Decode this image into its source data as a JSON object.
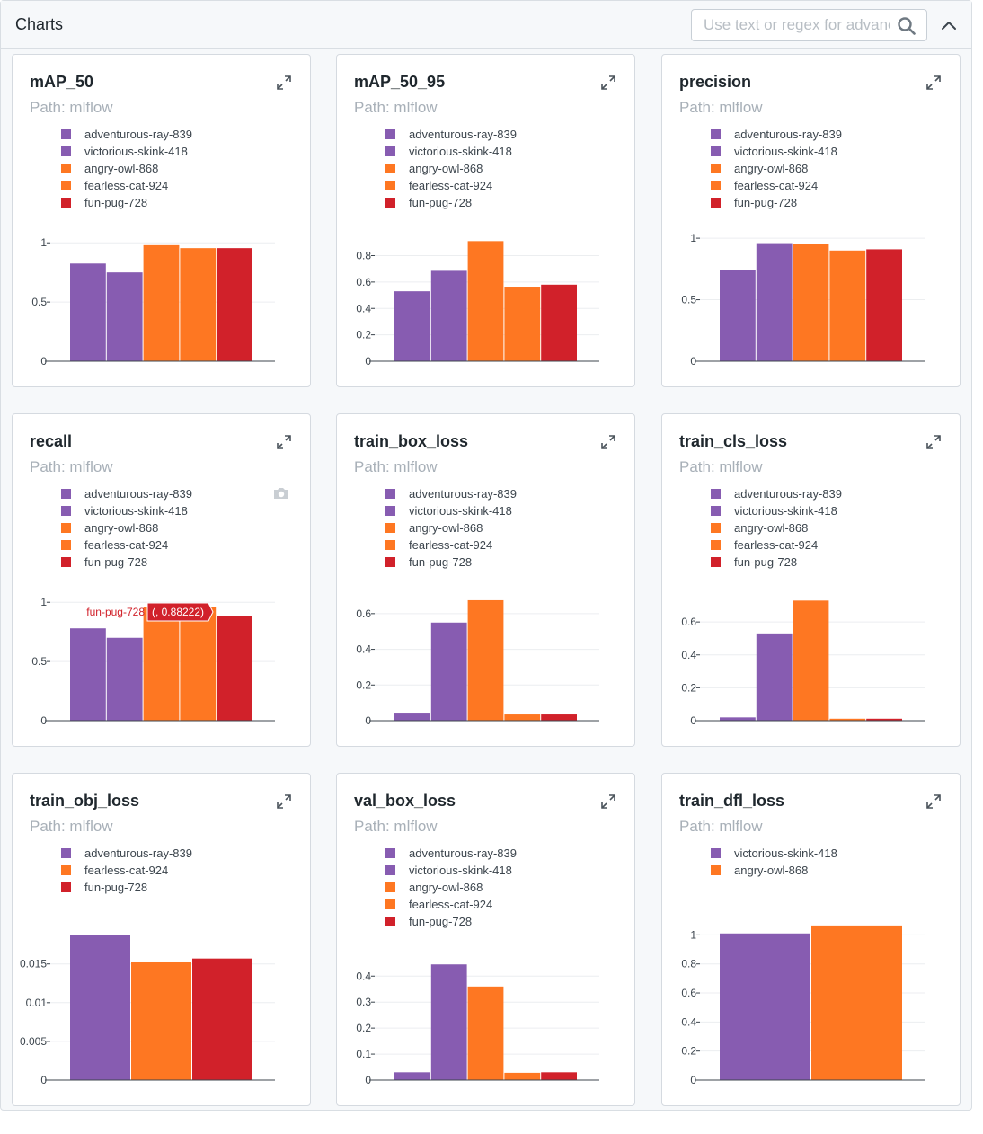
{
  "header": {
    "title": "Charts",
    "search_placeholder": "Use text or regex for advanced search"
  },
  "colors": {
    "adventurous-ray-839": "#875cb1",
    "victorious-skink-418": "#875cb1",
    "angry-owl-868": "#fe7722",
    "fearless-cat-924": "#fe7722",
    "fun-pug-728": "#d1212a"
  },
  "tooltip": {
    "chart": 3,
    "series": "fun-pug-728",
    "value": "(, 0.88222)"
  },
  "chart_data": [
    {
      "type": "bar",
      "title": "mAP_50",
      "path": "Path: mlflow",
      "series": [
        {
          "name": "adventurous-ray-839",
          "value": 0.825
        },
        {
          "name": "victorious-skink-418",
          "value": 0.75
        },
        {
          "name": "angry-owl-868",
          "value": 0.98
        },
        {
          "name": "fearless-cat-924",
          "value": 0.955
        },
        {
          "name": "fun-pug-728",
          "value": 0.955
        }
      ],
      "ylim": [
        0,
        1.07
      ],
      "yticks": [
        0,
        0.5,
        1
      ],
      "ytick_labels": [
        "0",
        "0.5",
        "1"
      ]
    },
    {
      "type": "bar",
      "title": "mAP_50_95",
      "path": "Path: mlflow",
      "series": [
        {
          "name": "adventurous-ray-839",
          "value": 0.53
        },
        {
          "name": "victorious-skink-418",
          "value": 0.685
        },
        {
          "name": "angry-owl-868",
          "value": 0.91
        },
        {
          "name": "fearless-cat-924",
          "value": 0.565
        },
        {
          "name": "fun-pug-728",
          "value": 0.58
        }
      ],
      "ylim": [
        0,
        0.96
      ],
      "yticks": [
        0,
        0.2,
        0.4,
        0.6,
        0.8
      ],
      "ytick_labels": [
        "0",
        "0.2",
        "0.4",
        "0.6",
        "0.8"
      ]
    },
    {
      "type": "bar",
      "title": "precision",
      "path": "Path: mlflow",
      "series": [
        {
          "name": "adventurous-ray-839",
          "value": 0.745
        },
        {
          "name": "victorious-skink-418",
          "value": 0.96
        },
        {
          "name": "angry-owl-868",
          "value": 0.95
        },
        {
          "name": "fearless-cat-924",
          "value": 0.9
        },
        {
          "name": "fun-pug-728",
          "value": 0.91
        }
      ],
      "ylim": [
        0,
        1.03
      ],
      "yticks": [
        0,
        0.5,
        1
      ],
      "ytick_labels": [
        "0",
        "0.5",
        "1"
      ]
    },
    {
      "type": "bar",
      "title": "recall",
      "path": "Path: mlflow",
      "series": [
        {
          "name": "adventurous-ray-839",
          "value": 0.78
        },
        {
          "name": "victorious-skink-418",
          "value": 0.7
        },
        {
          "name": "angry-owl-868",
          "value": 0.96
        },
        {
          "name": "fearless-cat-924",
          "value": 0.96
        },
        {
          "name": "fun-pug-728",
          "value": 0.88222
        }
      ],
      "ylim": [
        0,
        1.07
      ],
      "yticks": [
        0,
        0.5,
        1
      ],
      "ytick_labels": [
        "0",
        "0.5",
        "1"
      ]
    },
    {
      "type": "bar",
      "title": "train_box_loss",
      "path": "Path: mlflow",
      "series": [
        {
          "name": "adventurous-ray-839",
          "value": 0.04
        },
        {
          "name": "victorious-skink-418",
          "value": 0.55
        },
        {
          "name": "angry-owl-868",
          "value": 0.675
        },
        {
          "name": "fearless-cat-924",
          "value": 0.035
        },
        {
          "name": "fun-pug-728",
          "value": 0.035
        }
      ],
      "ylim": [
        0,
        0.71
      ],
      "yticks": [
        0,
        0.2,
        0.4,
        0.6
      ],
      "ytick_labels": [
        "0",
        "0.2",
        "0.4",
        "0.6"
      ]
    },
    {
      "type": "bar",
      "title": "train_cls_loss",
      "path": "Path: mlflow",
      "series": [
        {
          "name": "adventurous-ray-839",
          "value": 0.02
        },
        {
          "name": "victorious-skink-418",
          "value": 0.525
        },
        {
          "name": "angry-owl-868",
          "value": 0.73
        },
        {
          "name": "fearless-cat-924",
          "value": 0.012
        },
        {
          "name": "fun-pug-728",
          "value": 0.012
        }
      ],
      "ylim": [
        0,
        0.77
      ],
      "yticks": [
        0,
        0.2,
        0.4,
        0.6
      ],
      "ytick_labels": [
        "0",
        "0.2",
        "0.4",
        "0.6"
      ]
    },
    {
      "type": "bar",
      "title": "train_obj_loss",
      "path": "Path: mlflow",
      "series": [
        {
          "name": "adventurous-ray-839",
          "value": 0.0187
        },
        {
          "name": "fearless-cat-924",
          "value": 0.0152
        },
        {
          "name": "fun-pug-728",
          "value": 0.0157
        }
      ],
      "ylim": [
        0,
        0.021
      ],
      "yticks": [
        0,
        0.005,
        0.01,
        0.015
      ],
      "ytick_labels": [
        "0",
        "0.005",
        "0.01",
        "0.015"
      ]
    },
    {
      "type": "bar",
      "title": "val_box_loss",
      "path": "Path: mlflow",
      "series": [
        {
          "name": "adventurous-ray-839",
          "value": 0.03
        },
        {
          "name": "victorious-skink-418",
          "value": 0.445
        },
        {
          "name": "angry-owl-868",
          "value": 0.36
        },
        {
          "name": "fearless-cat-924",
          "value": 0.028
        },
        {
          "name": "fun-pug-728",
          "value": 0.03
        }
      ],
      "ylim": [
        0,
        0.47
      ],
      "yticks": [
        0,
        0.1,
        0.2,
        0.3,
        0.4
      ],
      "ytick_labels": [
        "0",
        "0.1",
        "0.2",
        "0.3",
        "0.4"
      ]
    },
    {
      "type": "bar",
      "title": "train_dfl_loss",
      "path": "Path: mlflow",
      "series": [
        {
          "name": "victorious-skink-418",
          "value": 1.01
        },
        {
          "name": "angry-owl-868",
          "value": 1.065
        }
      ],
      "ylim": [
        0,
        1.12
      ],
      "yticks": [
        0,
        0.2,
        0.4,
        0.6,
        0.8,
        1
      ],
      "ytick_labels": [
        "0",
        "0.2",
        "0.4",
        "0.6",
        "0.8",
        "1"
      ]
    }
  ]
}
